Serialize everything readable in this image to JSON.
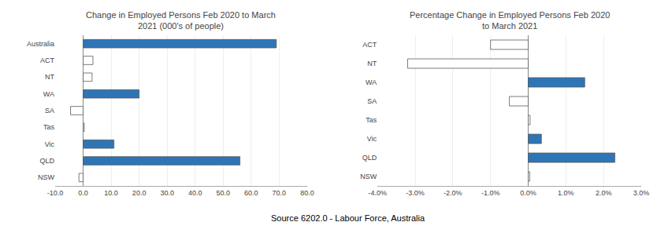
{
  "chart_data": [
    {
      "type": "bar",
      "orientation": "horizontal",
      "title": "Change in Employed Persons Feb 2020 to March\n2021 (000's of people)",
      "categories": [
        "Australia",
        "ACT",
        "NT",
        "WA",
        "SA",
        "Tas",
        "Vic",
        "QLD",
        "NSW"
      ],
      "values": [
        69.0,
        3.5,
        3.2,
        20.0,
        -4.5,
        0.4,
        11.0,
        56.0,
        -1.5
      ],
      "colors": [
        "#2E75B6",
        "#FFFFFF",
        "#FFFFFF",
        "#2E75B6",
        "#FFFFFF",
        "#FFFFFF",
        "#2E75B6",
        "#2E75B6",
        "#FFFFFF"
      ],
      "xlim": [
        -10,
        80
      ],
      "xticks": [
        {
          "value": -10,
          "label": "-10.0"
        },
        {
          "value": 0,
          "label": "0.0"
        },
        {
          "value": 10,
          "label": "10.0"
        },
        {
          "value": 20,
          "label": "20.0"
        },
        {
          "value": 30,
          "label": "30.0"
        },
        {
          "value": 40,
          "label": "40.0"
        },
        {
          "value": 50,
          "label": "50.0"
        },
        {
          "value": 60,
          "label": "60.0"
        },
        {
          "value": 70,
          "label": "70.0"
        },
        {
          "value": 80,
          "label": "80.0"
        }
      ],
      "grid": true,
      "annotations": [
        "Source 6202.0 - Labour Force, Australia"
      ]
    },
    {
      "type": "bar",
      "orientation": "horizontal",
      "title": "Percentage Change in Employed Persons Feb 2020\nto March 2021",
      "categories": [
        "ACT",
        "NT",
        "WA",
        "SA",
        "Tas",
        "Vic",
        "QLD",
        "NSW"
      ],
      "values": [
        -0.01,
        -0.032,
        0.015,
        -0.005,
        0.0005,
        0.0035,
        0.023,
        0.0004
      ],
      "colors": [
        "#FFFFFF",
        "#FFFFFF",
        "#2E75B6",
        "#FFFFFF",
        "#FFFFFF",
        "#2E75B6",
        "#2E75B6",
        "#FFFFFF"
      ],
      "xlim": [
        -0.04,
        0.03
      ],
      "xticks": [
        {
          "value": -0.04,
          "label": "-4.0%"
        },
        {
          "value": -0.03,
          "label": "-3.0%"
        },
        {
          "value": -0.02,
          "label": "-2.0%"
        },
        {
          "value": -0.01,
          "label": "-1.0%"
        },
        {
          "value": 0.0,
          "label": "0.0%"
        },
        {
          "value": 0.01,
          "label": "1.0%"
        },
        {
          "value": 0.02,
          "label": "2.0%"
        },
        {
          "value": 0.03,
          "label": "3.0%"
        }
      ],
      "grid": true
    }
  ]
}
